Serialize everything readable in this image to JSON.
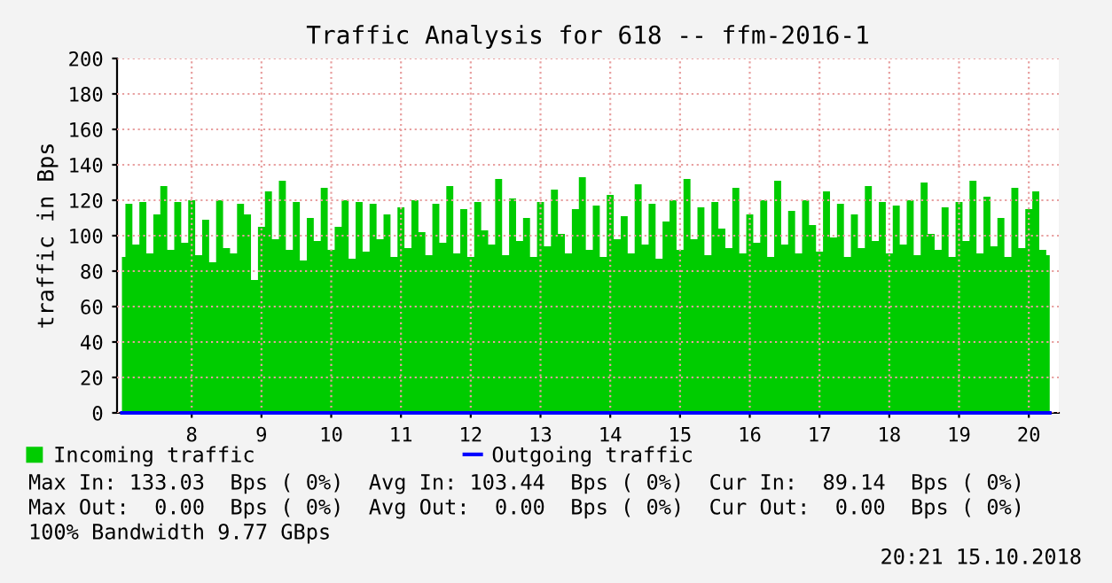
{
  "chart_data": {
    "type": "area",
    "title": "Traffic Analysis for 618 -- ffm-2016-1",
    "ylabel": "traffic in Bps",
    "xlim": [
      6.93,
      20.43
    ],
    "xticks": [
      8,
      9,
      10,
      11,
      12,
      13,
      14,
      15,
      16,
      17,
      18,
      19,
      20
    ],
    "ylim": [
      0,
      200
    ],
    "yticks": [
      0,
      20,
      40,
      60,
      80,
      100,
      120,
      140,
      160,
      180,
      200
    ],
    "grid": true,
    "legend": "bottom",
    "series": [
      {
        "name": "Incoming traffic",
        "color": "#00cc00",
        "x": [
          7.0,
          7.1,
          7.2,
          7.3,
          7.4,
          7.5,
          7.6,
          7.7,
          7.8,
          7.9,
          8.0,
          8.1,
          8.2,
          8.3,
          8.4,
          8.5,
          8.6,
          8.7,
          8.8,
          8.9,
          9.0,
          9.1,
          9.2,
          9.3,
          9.4,
          9.5,
          9.6,
          9.7,
          9.8,
          9.9,
          10.0,
          10.1,
          10.2,
          10.3,
          10.4,
          10.5,
          10.6,
          10.7,
          10.8,
          10.9,
          11.0,
          11.1,
          11.2,
          11.3,
          11.4,
          11.5,
          11.6,
          11.7,
          11.8,
          11.9,
          12.0,
          12.1,
          12.2,
          12.3,
          12.4,
          12.5,
          12.6,
          12.7,
          12.8,
          12.9,
          13.0,
          13.1,
          13.2,
          13.3,
          13.4,
          13.5,
          13.6,
          13.7,
          13.8,
          13.9,
          14.0,
          14.1,
          14.2,
          14.3,
          14.4,
          14.5,
          14.6,
          14.7,
          14.8,
          14.9,
          15.0,
          15.1,
          15.2,
          15.3,
          15.4,
          15.5,
          15.6,
          15.7,
          15.8,
          15.9,
          16.0,
          16.1,
          16.2,
          16.3,
          16.4,
          16.5,
          16.6,
          16.7,
          16.8,
          16.9,
          17.0,
          17.1,
          17.2,
          17.3,
          17.4,
          17.5,
          17.6,
          17.7,
          17.8,
          17.9,
          18.0,
          18.1,
          18.2,
          18.3,
          18.4,
          18.5,
          18.6,
          18.7,
          18.8,
          18.9,
          19.0,
          19.1,
          19.2,
          19.3,
          19.4,
          19.5,
          19.6,
          19.7,
          19.8,
          19.9,
          20.0,
          20.1,
          20.2,
          20.3
        ],
        "values": [
          88,
          118,
          95,
          119,
          90,
          112,
          128,
          92,
          119,
          96,
          120,
          89,
          109,
          85,
          120,
          93,
          90,
          118,
          112,
          75,
          105,
          125,
          98,
          131,
          92,
          119,
          86,
          110,
          97,
          127,
          92,
          105,
          120,
          87,
          119,
          91,
          118,
          98,
          112,
          88,
          116,
          93,
          120,
          102,
          89,
          118,
          96,
          128,
          90,
          115,
          88,
          119,
          103,
          95,
          132,
          89,
          121,
          97,
          110,
          88,
          119,
          94,
          126,
          101,
          90,
          115,
          133,
          92,
          117,
          88,
          123,
          98,
          111,
          90,
          129,
          95,
          118,
          87,
          108,
          120,
          92,
          132,
          98,
          116,
          89,
          119,
          104,
          93,
          127,
          90,
          112,
          96,
          120,
          88,
          131,
          95,
          114,
          90,
          120,
          106,
          91,
          125,
          99,
          118,
          88,
          112,
          93,
          128,
          97,
          119,
          90,
          117,
          95,
          120,
          89,
          130,
          101,
          92,
          116,
          88,
          119,
          97,
          131,
          90,
          122,
          94,
          110,
          88,
          127,
          93,
          115,
          125,
          92,
          89
        ]
      },
      {
        "name": "Outgoing traffic",
        "color": "#0000ff",
        "type": "line",
        "x": [
          7.0,
          20.3
        ],
        "values": [
          0,
          0
        ]
      }
    ],
    "annotations": [
      "Max In: 133.03  Bps ( 0%)  Avg In: 103.44  Bps ( 0%)  Cur In:  89.14  Bps ( 0%)",
      "Max Out:  0.00  Bps ( 0%)  Avg Out:  0.00  Bps ( 0%)  Cur Out:  0.00  Bps ( 0%)",
      "100% Bandwidth 9.77 GBps",
      "20:21 15.10.2018"
    ]
  }
}
